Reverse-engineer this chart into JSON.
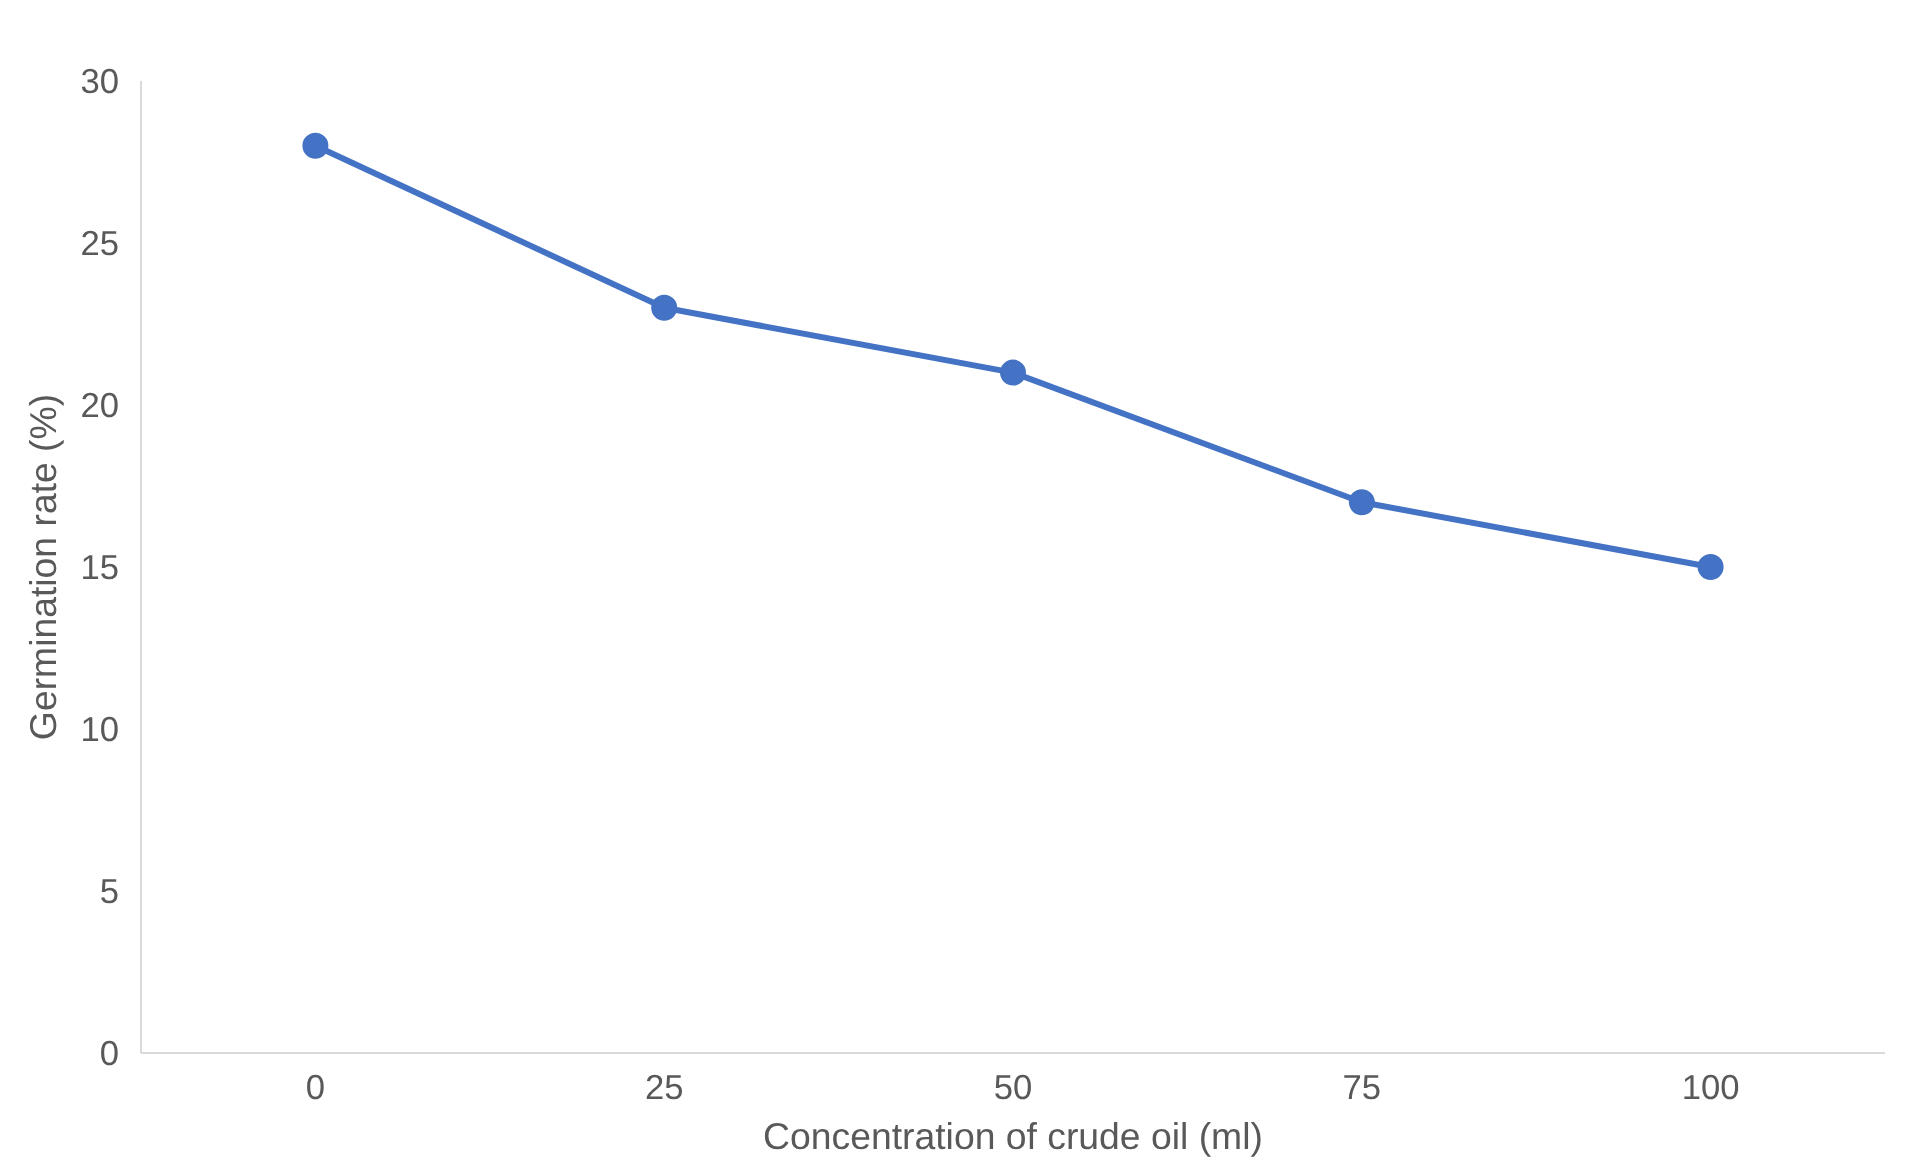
{
  "chart_data": {
    "type": "line",
    "xlabel": "Concentration of crude oil (ml)",
    "ylabel": "Germination rate (%)",
    "categories": [
      "0",
      "25",
      "50",
      "75",
      "100"
    ],
    "series": [
      {
        "color": "#4472c4",
        "values": [
          28,
          23,
          21,
          17,
          15
        ]
      }
    ],
    "ylim": [
      0,
      30
    ],
    "yticks": [
      0,
      5,
      10,
      15,
      20,
      25,
      30
    ],
    "grid": false,
    "marker": "circle",
    "line_style": "solid"
  }
}
